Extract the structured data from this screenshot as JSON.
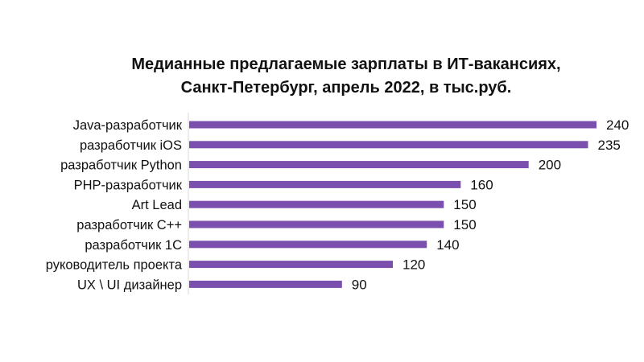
{
  "chart_data": {
    "type": "bar",
    "orientation": "horizontal",
    "title": [
      "Медианные предлагаемые зарплаты в ИТ-вакансиях,",
      "Санкт-Петербург, апрель 2022, в тыс.руб."
    ],
    "categories": [
      "Java-разработчик",
      "разработчик iOS",
      "разработчик Python",
      "PHP-разработчик",
      "Art Lead",
      "разработчик C++",
      "разработчик 1C",
      "руководитель проекта",
      "UX \\ UI дизайнер"
    ],
    "values": [
      240,
      235,
      200,
      160,
      150,
      150,
      140,
      120,
      90
    ],
    "data_labels": [
      "240",
      "235",
      "200",
      "160",
      "150",
      "150",
      "140",
      "120",
      "90"
    ],
    "xlim": [
      0,
      240
    ],
    "grid": false,
    "legend": "none",
    "bar_color": "#7a4fad"
  }
}
